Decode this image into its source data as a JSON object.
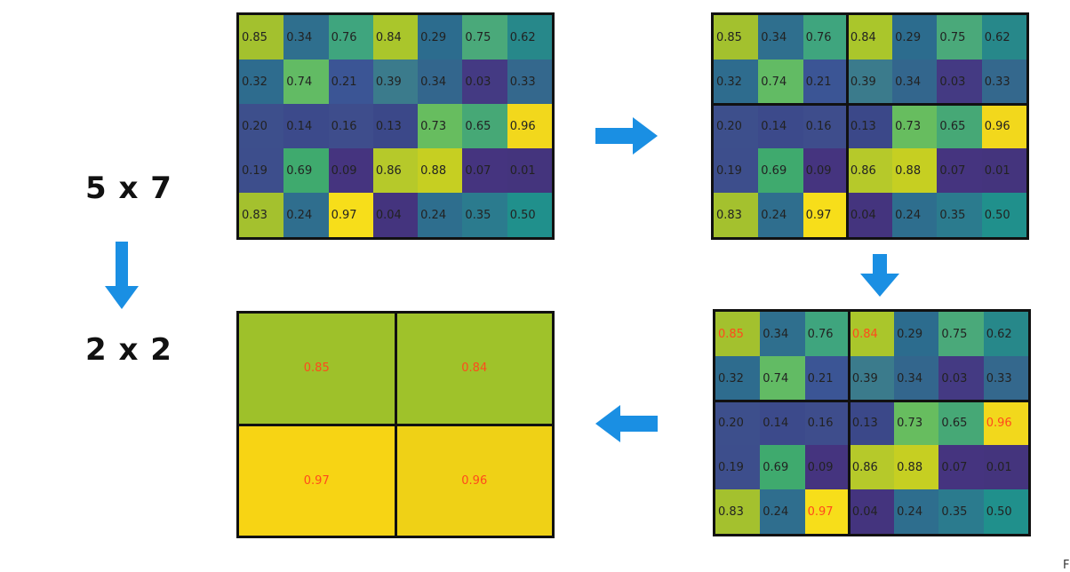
{
  "labels": {
    "input_size": "5 x 7",
    "output_size": "2 x 2"
  },
  "matrix": [
    [
      "0.85",
      "0.34",
      "0.76",
      "0.84",
      "0.29",
      "0.75",
      "0.62"
    ],
    [
      "0.32",
      "0.74",
      "0.21",
      "0.39",
      "0.34",
      "0.03",
      "0.33"
    ],
    [
      "0.20",
      "0.14",
      "0.16",
      "0.13",
      "0.73",
      "0.65",
      "0.96"
    ],
    [
      "0.19",
      "0.69",
      "0.09",
      "0.86",
      "0.88",
      "0.07",
      "0.01"
    ],
    [
      "0.83",
      "0.24",
      "0.97",
      "0.04",
      "0.24",
      "0.35",
      "0.50"
    ]
  ],
  "matrix_colors": [
    [
      "#a3c12e",
      "#2f6f8e",
      "#3fa57e",
      "#aac62b",
      "#2c6c8e",
      "#4aa97a",
      "#27888a"
    ],
    [
      "#2e6c8e",
      "#62bb64",
      "#3b5595",
      "#3b7b8c",
      "#33668d",
      "#443a83",
      "#34688d"
    ],
    [
      "#3d4f8c",
      "#3c4a8b",
      "#3e4d8c",
      "#3b4889",
      "#67bd5f",
      "#46a876",
      "#f2d81c"
    ],
    [
      "#3d4e8c",
      "#3faa6e",
      "#45347f",
      "#b6c92a",
      "#c6cf22",
      "#45347f",
      "#44347d"
    ],
    [
      "#a4c12e",
      "#2f6e8e",
      "#f7de1a",
      "#44347e",
      "#2e6e8e",
      "#2b7b8e",
      "#20908c"
    ]
  ],
  "highlight_max": [
    [
      0,
      0
    ],
    [
      0,
      3
    ],
    [
      2,
      6
    ],
    [
      4,
      2
    ]
  ],
  "pooled": {
    "values": [
      [
        "0.85",
        "0.84"
      ],
      [
        "0.97",
        "0.96"
      ]
    ],
    "colors": [
      [
        "#9ec12a",
        "#9fc22a"
      ],
      [
        "#f7d414",
        "#efd116"
      ]
    ]
  },
  "arrow_color": "#1a8fe3",
  "corner_text": "F"
}
